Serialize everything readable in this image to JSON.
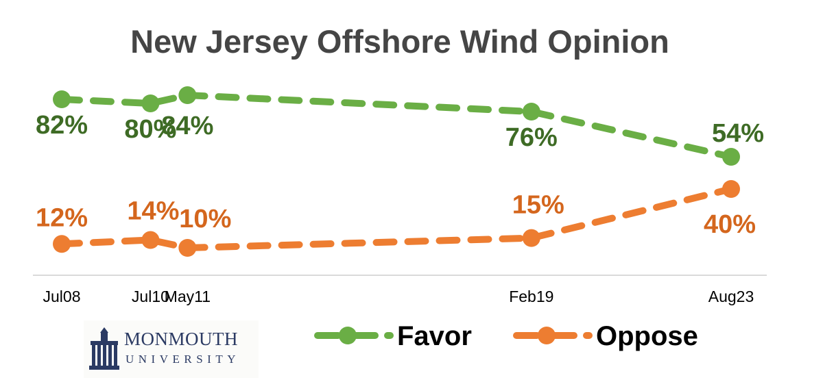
{
  "chart_data": {
    "type": "line",
    "title": "New Jersey Offshore Wind Opinion",
    "categories": [
      "Jul08",
      "Jul10",
      "May11",
      "Feb19",
      "Aug23"
    ],
    "series": [
      {
        "name": "Favor",
        "values": [
          82,
          80,
          84,
          76,
          54
        ],
        "labels": [
          "82%",
          "80%",
          "84%",
          "76%",
          "54%"
        ],
        "color": "#6aae45",
        "label_color": "#3e6b25"
      },
      {
        "name": "Oppose",
        "values": [
          12,
          14,
          10,
          15,
          40
        ],
        "labels": [
          "12%",
          "14%",
          "10%",
          "15%",
          "40%"
        ],
        "color": "#ed7d31",
        "label_color": "#d4661d"
      }
    ],
    "line_style": "dashed",
    "grid": false,
    "legend_position": "bottom"
  },
  "logo": {
    "name": "MONMOUTH",
    "sub": "UNIVERSITY",
    "color": "#2b3a63"
  }
}
